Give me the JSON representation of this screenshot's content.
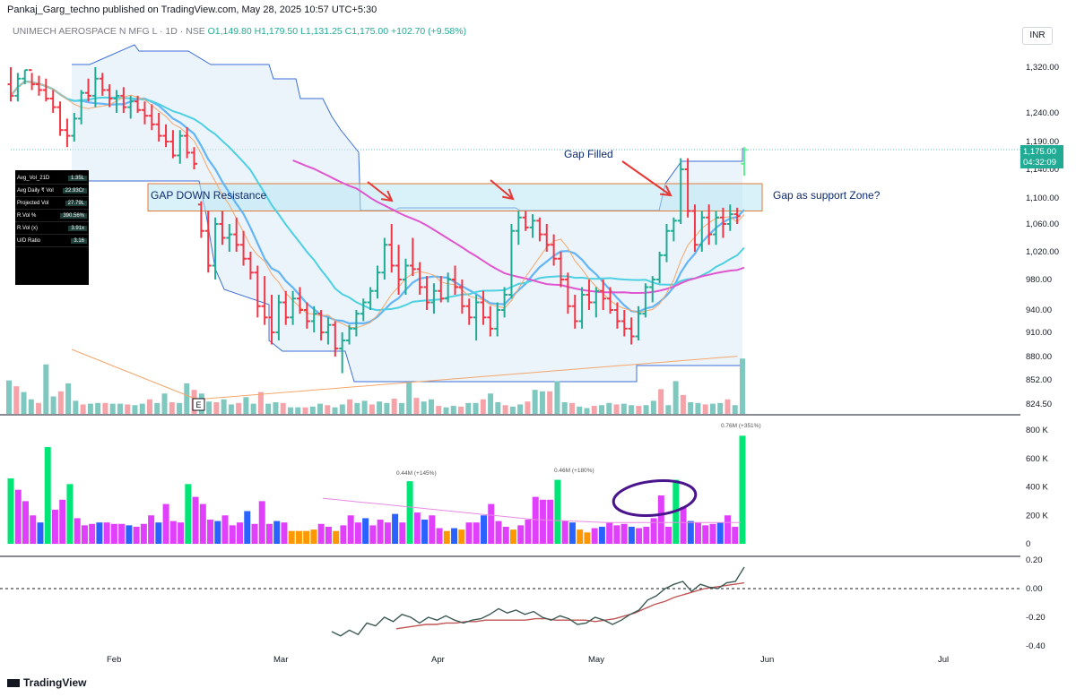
{
  "header": {
    "published": "Pankaj_Garg_techno published on TradingView.com, May 28, 2025 10:57 UTC+5:30",
    "symbol": "UNIMECH AEROSPACE N MFG L · 1D · NSE",
    "open": "O1,149.80",
    "high": "H1,179.50",
    "low": "L1,131.25",
    "close": "C1,175.00",
    "change": "+102.70 (+9.58%)",
    "currency": "INR"
  },
  "price_tag": {
    "price": "1,175.00",
    "countdown": "04:32:09"
  },
  "stats_table": [
    {
      "label": "Avg_Vol_21D",
      "value": "1.35L"
    },
    {
      "label": "Avg Daily ₹ Vol",
      "value": "22.93Cr"
    },
    {
      "label": "Projected Vol",
      "value": "27.79L"
    },
    {
      "label": "R.Vol %",
      "value": "390.56%"
    },
    {
      "label": "R.Vol (x)",
      "value": "3.91x"
    },
    {
      "label": "U/D Ratio",
      "value": "3.16"
    }
  ],
  "annotations": {
    "gap_filled": "Gap Filled",
    "gap_down_resistance": "GAP DOWN Resistance",
    "gap_support": "Gap as support Zone?",
    "earnings_marker": "E",
    "vol_label_1": "0.44M (+145%)",
    "vol_label_2": "0.46M (+180%)",
    "vol_label_3": "0.76M (+351%)"
  },
  "colors": {
    "up": "#22ab94",
    "down": "#f23645",
    "light_up": "#5ef08e",
    "magenta": "#e040fb",
    "blue": "#2962ff",
    "orange": "#ff9800",
    "green": "#00e676",
    "cyan": "#4dd0e1",
    "sky": "#64b5f6",
    "pink": "#e056d0",
    "band": "#dbe9f7"
  },
  "footer": {
    "brand": "TradingView"
  },
  "chart_data": {
    "type": "bar",
    "price_axis": [
      "1,320.00",
      "1,240.00",
      "1,190.00",
      "1,140.00",
      "1,100.00",
      "1,060.00",
      "1,020.00",
      "980.00",
      "940.00",
      "910.00",
      "880.00",
      "852.00",
      "824.50"
    ],
    "volume_axis": [
      "800 K",
      "600 K",
      "400 K",
      "200 K",
      "0"
    ],
    "indicator_axis": [
      "0.20",
      "0.00",
      "-0.20",
      "-0.40"
    ],
    "date_labels": [
      "Feb",
      "Mar",
      "Apr",
      "May",
      "Jun",
      "Jul"
    ],
    "ohlc": [
      [
        1290,
        1320,
        1260,
        1270
      ],
      [
        1270,
        1310,
        1260,
        1300
      ],
      [
        1300,
        1325,
        1290,
        1315
      ],
      [
        1315,
        1330,
        1280,
        1290
      ],
      [
        1290,
        1305,
        1270,
        1280
      ],
      [
        1280,
        1300,
        1260,
        1265
      ],
      [
        1265,
        1280,
        1240,
        1250
      ],
      [
        1250,
        1260,
        1200,
        1210
      ],
      [
        1210,
        1230,
        1180,
        1200
      ],
      [
        1200,
        1240,
        1190,
        1230
      ],
      [
        1230,
        1280,
        1220,
        1275
      ],
      [
        1275,
        1300,
        1260,
        1270
      ],
      [
        1270,
        1320,
        1250,
        1300
      ],
      [
        1300,
        1310,
        1270,
        1280
      ],
      [
        1280,
        1290,
        1250,
        1265
      ],
      [
        1265,
        1280,
        1240,
        1270
      ],
      [
        1270,
        1285,
        1240,
        1250
      ],
      [
        1250,
        1270,
        1230,
        1260
      ],
      [
        1260,
        1270,
        1240,
        1245
      ],
      [
        1245,
        1260,
        1220,
        1235
      ],
      [
        1235,
        1255,
        1210,
        1220
      ],
      [
        1220,
        1240,
        1190,
        1200
      ],
      [
        1200,
        1220,
        1180,
        1190
      ],
      [
        1190,
        1210,
        1160,
        1165
      ],
      [
        1165,
        1210,
        1150,
        1200
      ],
      [
        1200,
        1215,
        1160,
        1170
      ],
      [
        1170,
        1180,
        1140,
        1150
      ],
      [
        1090,
        1095,
        1040,
        1050
      ],
      [
        1050,
        1080,
        990,
        1000
      ],
      [
        1000,
        1070,
        980,
        1060
      ],
      [
        1060,
        1080,
        1030,
        1040
      ],
      [
        1040,
        1060,
        1020,
        1045
      ],
      [
        1045,
        1070,
        1020,
        1030
      ],
      [
        1030,
        1050,
        1000,
        1010
      ],
      [
        1010,
        1020,
        980,
        990
      ],
      [
        990,
        1000,
        930,
        945
      ],
      [
        945,
        985,
        920,
        930
      ],
      [
        930,
        960,
        895,
        910
      ],
      [
        910,
        960,
        900,
        950
      ],
      [
        950,
        965,
        920,
        930
      ],
      [
        930,
        965,
        920,
        955
      ],
      [
        955,
        970,
        935,
        940
      ],
      [
        940,
        950,
        915,
        925
      ],
      [
        925,
        945,
        910,
        935
      ],
      [
        935,
        940,
        900,
        910
      ],
      [
        910,
        930,
        895,
        920
      ],
      [
        920,
        925,
        880,
        890
      ],
      [
        890,
        910,
        860,
        900
      ],
      [
        900,
        920,
        895,
        915
      ],
      [
        915,
        940,
        905,
        935
      ],
      [
        935,
        955,
        925,
        950
      ],
      [
        950,
        970,
        940,
        965
      ],
      [
        965,
        1000,
        955,
        990
      ],
      [
        990,
        1040,
        980,
        1030
      ],
      [
        1030,
        1060,
        990,
        1000
      ],
      [
        1000,
        1030,
        960,
        980
      ],
      [
        980,
        1010,
        960,
        1000
      ],
      [
        1000,
        1040,
        985,
        995
      ],
      [
        995,
        1005,
        960,
        970
      ],
      [
        970,
        985,
        940,
        950
      ],
      [
        950,
        975,
        935,
        965
      ],
      [
        965,
        985,
        950,
        955
      ],
      [
        955,
        990,
        950,
        980
      ],
      [
        980,
        1000,
        960,
        970
      ],
      [
        970,
        980,
        935,
        945
      ],
      [
        945,
        955,
        920,
        930
      ],
      [
        930,
        960,
        900,
        950
      ],
      [
        950,
        965,
        920,
        930
      ],
      [
        930,
        945,
        905,
        915
      ],
      [
        915,
        950,
        905,
        940
      ],
      [
        940,
        970,
        930,
        960
      ],
      [
        960,
        1060,
        955,
        1050
      ],
      [
        1050,
        1080,
        1030,
        1070
      ],
      [
        1070,
        1080,
        1050,
        1055
      ],
      [
        1055,
        1075,
        1040,
        1065
      ],
      [
        1065,
        1070,
        1035,
        1045
      ],
      [
        1045,
        1060,
        1020,
        1030
      ],
      [
        1030,
        1045,
        1000,
        1010
      ],
      [
        1010,
        1020,
        970,
        980
      ],
      [
        980,
        990,
        935,
        945
      ],
      [
        945,
        960,
        915,
        925
      ],
      [
        925,
        970,
        915,
        960
      ],
      [
        960,
        980,
        940,
        950
      ],
      [
        950,
        970,
        930,
        965
      ],
      [
        965,
        980,
        940,
        955
      ],
      [
        955,
        970,
        935,
        940
      ],
      [
        940,
        950,
        915,
        925
      ],
      [
        925,
        940,
        905,
        915
      ],
      [
        915,
        930,
        895,
        905
      ],
      [
        905,
        945,
        900,
        935
      ],
      [
        935,
        975,
        930,
        970
      ],
      [
        970,
        985,
        950,
        980
      ],
      [
        980,
        1020,
        975,
        1015
      ],
      [
        1015,
        1060,
        1005,
        1050
      ],
      [
        1050,
        1070,
        1035,
        1065
      ],
      [
        1065,
        1160,
        1060,
        1140
      ],
      [
        1140,
        1160,
        1070,
        1080
      ],
      [
        1080,
        1090,
        1020,
        1030
      ],
      [
        1030,
        1080,
        1020,
        1070
      ],
      [
        1070,
        1090,
        1030,
        1045
      ],
      [
        1045,
        1080,
        1030,
        1070
      ],
      [
        1070,
        1085,
        1040,
        1060
      ],
      [
        1060,
        1090,
        1050,
        1075
      ],
      [
        1075,
        1085,
        1060,
        1072
      ],
      [
        1150,
        1180,
        1131,
        1175
      ]
    ],
    "volume_k": [
      460,
      380,
      300,
      200,
      150,
      680,
      240,
      310,
      420,
      180,
      130,
      140,
      150,
      150,
      140,
      140,
      130,
      120,
      140,
      200,
      150,
      280,
      160,
      150,
      420,
      330,
      280,
      170,
      160,
      200,
      130,
      150,
      230,
      140,
      300,
      140,
      160,
      150,
      90,
      90,
      90,
      100,
      140,
      120,
      90,
      130,
      200,
      150,
      180,
      130,
      170,
      150,
      210,
      150,
      440,
      220,
      170,
      200,
      110,
      90,
      110,
      100,
      150,
      150,
      200,
      280,
      160,
      120,
      100,
      130,
      170,
      330,
      310,
      310,
      450,
      160,
      150,
      100,
      80,
      110,
      120,
      150,
      130,
      140,
      120,
      110,
      120,
      180,
      340,
      120,
      450,
      260,
      160,
      150,
      130,
      140,
      150,
      200,
      120,
      760
    ],
    "indicator": [
      -0.3,
      -0.33,
      -0.29,
      -0.32,
      -0.24,
      -0.26,
      -0.2,
      -0.23,
      -0.18,
      -0.2,
      -0.24,
      -0.2,
      -0.22,
      -0.19,
      -0.22,
      -0.24,
      -0.22,
      -0.21,
      -0.18,
      -0.14,
      -0.17,
      -0.15,
      -0.18,
      -0.16,
      -0.2,
      -0.22,
      -0.19,
      -0.21,
      -0.25,
      -0.24,
      -0.2,
      -0.22,
      -0.25,
      -0.22,
      -0.18,
      -0.15,
      -0.08,
      -0.05,
      0.0,
      0.03,
      0.05,
      -0.02,
      0.03,
      0.01,
      0.0,
      0.04,
      0.05,
      0.15
    ],
    "indicator_signal": [
      -0.28,
      -0.27,
      -0.26,
      -0.25,
      -0.25,
      -0.24,
      -0.24,
      -0.23,
      -0.23,
      -0.22,
      -0.22,
      -0.22,
      -0.22,
      -0.22,
      -0.21,
      -0.21,
      -0.22,
      -0.22,
      -0.22,
      -0.22,
      -0.23,
      -0.22,
      -0.21,
      -0.19,
      -0.17,
      -0.14,
      -0.11,
      -0.09,
      -0.06,
      -0.04,
      -0.02,
      0.0,
      0.01,
      0.02,
      0.03,
      0.04
    ],
    "zones": [
      {
        "name": "GAP DOWN Resistance",
        "top": 1120,
        "bottom": 1080
      },
      {
        "name": "Gap as support Zone?",
        "top": 1120,
        "bottom": 1080
      }
    ],
    "grid": false,
    "ylim_price": [
      824.5,
      1345
    ]
  }
}
